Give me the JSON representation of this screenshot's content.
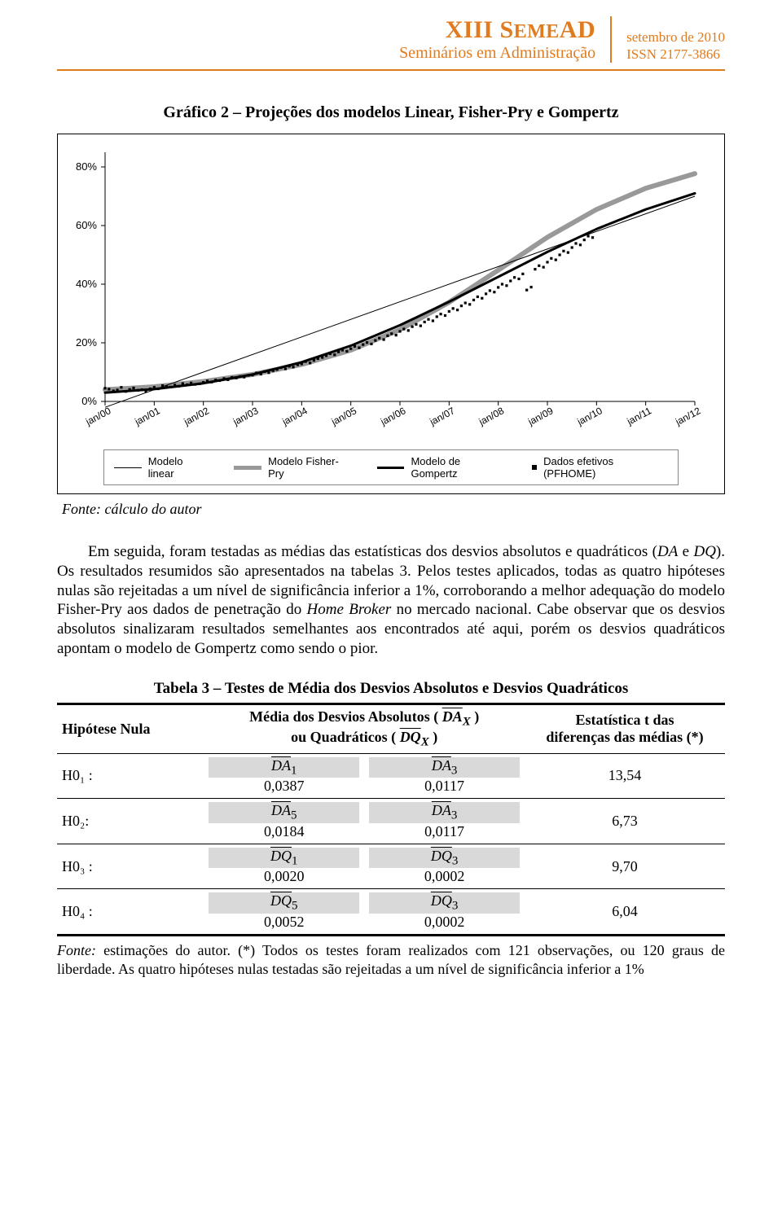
{
  "header": {
    "brand_roman": "XIII",
    "brand_word1": " S",
    "brand_word2": "EME",
    "brand_word3": "AD",
    "subtitle": "Seminários em Administração",
    "right_line1": "setembro de 2010",
    "right_line2": "ISSN 2177-3866",
    "brand_color": "#e07b1f"
  },
  "chart": {
    "title": "Gráfico 2 – Projeções dos modelos Linear, Fisher-Pry e Gompertz",
    "x_labels": [
      "jan/00",
      "jan/01",
      "jan/02",
      "jan/03",
      "jan/04",
      "jan/05",
      "jan/06",
      "jan/07",
      "jan/08",
      "jan/09",
      "jan/10",
      "jan/11",
      "jan/12"
    ],
    "y_ticks": [
      "0%",
      "20%",
      "40%",
      "60%",
      "80%"
    ],
    "ylim": [
      0,
      85
    ],
    "xlim": [
      0,
      12
    ],
    "legend": {
      "linear": "Modelo linear",
      "fisher": "Modelo Fisher-Pry",
      "gompertz": "Modelo de Gompertz",
      "data": "Dados efetivos (PFHOME)"
    },
    "colors": {
      "bg": "#ffffff",
      "axis": "#000000",
      "linear": "#000000",
      "fisher": "#999999",
      "gompertz": "#000000",
      "points": "#000000",
      "grid": "#d0d0d0"
    },
    "line_widths": {
      "linear": 1,
      "fisher": 6,
      "gompertz": 3
    },
    "linear_series": [
      [
        0,
        -2
      ],
      [
        12,
        70
      ]
    ],
    "fisher_series": [
      [
        0,
        4
      ],
      [
        1,
        5
      ],
      [
        2,
        6.8
      ],
      [
        3,
        9.2
      ],
      [
        4,
        12.6
      ],
      [
        5,
        17.5
      ],
      [
        6,
        24.5
      ],
      [
        7,
        33.8
      ],
      [
        8,
        44.8
      ],
      [
        9,
        56
      ],
      [
        10,
        65.5
      ],
      [
        11,
        72.7
      ],
      [
        12,
        77.7
      ]
    ],
    "gompertz_series": [
      [
        0,
        3
      ],
      [
        1,
        4.2
      ],
      [
        2,
        6.2
      ],
      [
        3,
        9.2
      ],
      [
        4,
        13.4
      ],
      [
        5,
        19
      ],
      [
        6,
        26
      ],
      [
        7,
        34
      ],
      [
        8,
        42.5
      ],
      [
        9,
        51
      ],
      [
        10,
        58.8
      ],
      [
        11,
        65.5
      ],
      [
        12,
        71
      ]
    ],
    "data_points": [
      [
        0.0,
        4.5
      ],
      [
        0.08,
        4.2
      ],
      [
        0.17,
        3.6
      ],
      [
        0.25,
        3.9
      ],
      [
        0.33,
        4.8
      ],
      [
        0.42,
        3.4
      ],
      [
        0.5,
        4.1
      ],
      [
        0.58,
        4.6
      ],
      [
        0.67,
        3.8
      ],
      [
        0.75,
        4.0
      ],
      [
        0.83,
        3.5
      ],
      [
        0.92,
        4.3
      ],
      [
        1.0,
        4.8
      ],
      [
        1.08,
        4.3
      ],
      [
        1.17,
        5.4
      ],
      [
        1.25,
        5.1
      ],
      [
        1.33,
        4.9
      ],
      [
        1.42,
        5.6
      ],
      [
        1.5,
        5.2
      ],
      [
        1.58,
        6.1
      ],
      [
        1.67,
        5.7
      ],
      [
        1.75,
        6.3
      ],
      [
        1.83,
        5.8
      ],
      [
        1.92,
        6.0
      ],
      [
        2.0,
        6.5
      ],
      [
        2.08,
        7.0
      ],
      [
        2.17,
        6.6
      ],
      [
        2.25,
        7.3
      ],
      [
        2.33,
        7.1
      ],
      [
        2.42,
        7.8
      ],
      [
        2.5,
        7.4
      ],
      [
        2.58,
        8.2
      ],
      [
        2.67,
        8.0
      ],
      [
        2.75,
        8.5
      ],
      [
        2.83,
        8.3
      ],
      [
        2.92,
        8.9
      ],
      [
        3.0,
        9.0
      ],
      [
        3.08,
        9.7
      ],
      [
        3.17,
        9.3
      ],
      [
        3.25,
        10.2
      ],
      [
        3.33,
        9.8
      ],
      [
        3.42,
        10.5
      ],
      [
        3.5,
        10.9
      ],
      [
        3.58,
        11.5
      ],
      [
        3.67,
        11.1
      ],
      [
        3.75,
        12.0
      ],
      [
        3.83,
        11.7
      ],
      [
        3.92,
        12.5
      ],
      [
        4.0,
        12.8
      ],
      [
        4.08,
        13.6
      ],
      [
        4.17,
        13.1
      ],
      [
        4.25,
        14.0
      ],
      [
        4.33,
        14.6
      ],
      [
        4.42,
        15.0
      ],
      [
        4.5,
        15.6
      ],
      [
        4.58,
        16.3
      ],
      [
        4.67,
        15.9
      ],
      [
        4.75,
        16.9
      ],
      [
        4.83,
        17.5
      ],
      [
        4.92,
        17.1
      ],
      [
        5.0,
        18.0
      ],
      [
        5.08,
        18.8
      ],
      [
        5.17,
        18.3
      ],
      [
        5.25,
        19.4
      ],
      [
        5.33,
        20.1
      ],
      [
        5.42,
        19.6
      ],
      [
        5.5,
        20.8
      ],
      [
        5.58,
        21.6
      ],
      [
        5.67,
        21.1
      ],
      [
        5.75,
        22.4
      ],
      [
        5.83,
        23.1
      ],
      [
        5.92,
        22.6
      ],
      [
        6.0,
        23.9
      ],
      [
        6.08,
        24.7
      ],
      [
        6.17,
        24.2
      ],
      [
        6.25,
        25.5
      ],
      [
        6.33,
        26.3
      ],
      [
        6.42,
        25.8
      ],
      [
        6.5,
        27.1
      ],
      [
        6.58,
        28.0
      ],
      [
        6.67,
        27.5
      ],
      [
        6.75,
        28.9
      ],
      [
        6.83,
        29.8
      ],
      [
        6.92,
        29.3
      ],
      [
        7.0,
        30.7
      ],
      [
        7.08,
        31.7
      ],
      [
        7.17,
        31.2
      ],
      [
        7.25,
        32.6
      ],
      [
        7.33,
        33.6
      ],
      [
        7.42,
        33.1
      ],
      [
        7.5,
        34.6
      ],
      [
        7.58,
        35.7
      ],
      [
        7.67,
        35.2
      ],
      [
        7.75,
        36.7
      ],
      [
        7.83,
        37.8
      ],
      [
        7.92,
        37.3
      ],
      [
        8.0,
        38.9
      ],
      [
        8.08,
        40.0
      ],
      [
        8.17,
        39.5
      ],
      [
        8.25,
        41.1
      ],
      [
        8.33,
        42.3
      ],
      [
        8.42,
        41.8
      ],
      [
        8.5,
        43.5
      ],
      [
        8.58,
        38.0
      ],
      [
        8.67,
        39.0
      ],
      [
        8.75,
        45.1
      ],
      [
        8.83,
        46.3
      ],
      [
        8.92,
        45.8
      ],
      [
        9.0,
        47.5
      ],
      [
        9.08,
        48.8
      ],
      [
        9.17,
        48.3
      ],
      [
        9.25,
        50.0
      ],
      [
        9.33,
        51.3
      ],
      [
        9.42,
        50.8
      ],
      [
        9.5,
        52.5
      ],
      [
        9.58,
        53.9
      ],
      [
        9.67,
        53.4
      ],
      [
        9.75,
        55.1
      ],
      [
        9.83,
        56.4
      ],
      [
        9.92,
        55.9
      ]
    ]
  },
  "fonte_grafico": "Fonte: cálculo do autor",
  "paragraph": "Em seguida, foram testadas as médias das estatísticas dos desvios absolutos e quadráticos (DA e DQ). Os resultados resumidos são apresentados na tabelas 3. Pelos testes aplicados, todas as quatro hipóteses nulas são rejeitadas a um nível de significância inferior a 1%, corroborando a melhor adequação do modelo Fisher-Pry aos dados de penetração do Home Broker no mercado nacional. Cabe observar que os desvios absolutos sinalizaram resultados semelhantes aos encontrados até aqui, porém os desvios quadráticos apontam o modelo de Gompertz como sendo o pior.",
  "table": {
    "title": "Tabela 3 – Testes de Média dos Desvios Absolutos e Desvios Quadráticos",
    "head_col1": "Hipótese Nula",
    "head_col2_line1": "Média dos Desvios Absolutos ( ",
    "head_col2_sym1": "DA",
    "head_col2_sub1": "X",
    "head_col2_line2": " )",
    "head_col2_line3": "ou Quadráticos ( ",
    "head_col2_sym2": "DQ",
    "head_col2_sub2": "X",
    "head_col2_line4": " )",
    "head_col3_line1": "Estatística t das",
    "head_col3_line2": "diferenças das médias (*)",
    "rows": [
      {
        "h": "H0₁ :",
        "sa": "DA",
        "ia": "1",
        "va": "0,0387",
        "sb": "DA",
        "ib": "3",
        "vb": "0,0117",
        "t": "13,54"
      },
      {
        "h": "H0₂:",
        "sa": "DA",
        "ia": "5",
        "va": "0,0184",
        "sb": "DA",
        "ib": "3",
        "vb": "0,0117",
        "t": "6,73"
      },
      {
        "h": "H0₃ :",
        "sa": "DQ",
        "ia": "1",
        "va": "0,0020",
        "sb": "DQ",
        "ib": "3",
        "vb": "0,0002",
        "t": "9,70"
      },
      {
        "h": "H0₄ :",
        "sa": "DQ",
        "ia": "5",
        "va": "0,0052",
        "sb": "DQ",
        "ib": "3",
        "vb": "0,0002",
        "t": "6,04"
      }
    ],
    "footnote": "Fonte: estimações do autor. (*) Todos os testes foram realizados com 121 observações, ou 120 graus de liberdade. As quatro hipóteses nulas testadas são rejeitadas a um nível de significância inferior a 1%"
  }
}
